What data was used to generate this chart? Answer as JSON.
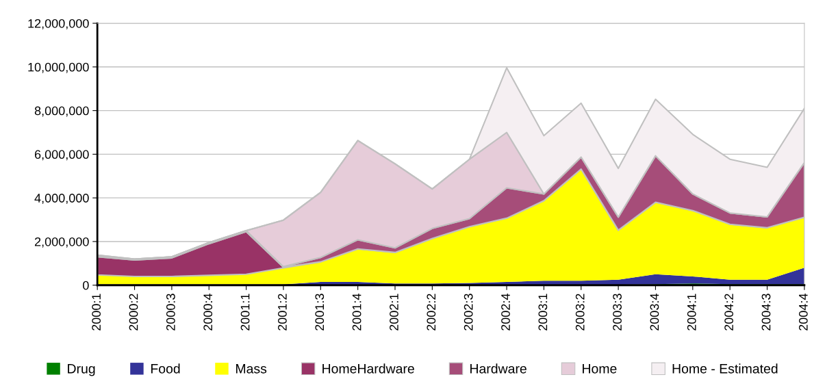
{
  "chart_data": {
    "type": "area",
    "stacked": true,
    "categories": [
      "2000:1",
      "2000:2",
      "2000:3",
      "2000:4",
      "2001:1",
      "2001:2",
      "2001:3",
      "2001:4",
      "2002:1",
      "2002:2",
      "2002:3",
      "2002:4",
      "2003:1",
      "2003:2",
      "2003:3",
      "2003:4",
      "2004:1",
      "2004:2",
      "2004:3",
      "2004:4"
    ],
    "series": [
      {
        "name": "Drug",
        "color": "#008000",
        "values": [
          20000,
          20000,
          20000,
          20000,
          20000,
          20000,
          20000,
          20000,
          20000,
          20000,
          20000,
          20000,
          20000,
          20000,
          20000,
          50000,
          80000,
          50000,
          50000,
          50000
        ]
      },
      {
        "name": "Food",
        "color": "#333399",
        "values": [
          20000,
          20000,
          20000,
          20000,
          20000,
          20000,
          130000,
          130000,
          60000,
          60000,
          80000,
          130000,
          180000,
          180000,
          230000,
          450000,
          320000,
          200000,
          200000,
          750000
        ]
      },
      {
        "name": "Mass",
        "color": "#ffff00",
        "values": [
          430000,
          360000,
          360000,
          410000,
          460000,
          750000,
          920000,
          1510000,
          1420000,
          2060000,
          2580000,
          2920000,
          3670000,
          5120000,
          2270000,
          3300000,
          3020000,
          2540000,
          2380000,
          2310000
        ]
      },
      {
        "name": "HomeHardware",
        "color": "#993366",
        "values": [
          830000,
          750000,
          850000,
          1450000,
          1950000,
          30000,
          0,
          0,
          0,
          0,
          0,
          0,
          0,
          0,
          0,
          0,
          0,
          0,
          0,
          0
        ]
      },
      {
        "name": "Hardware",
        "color": "#a64d79",
        "values": [
          50000,
          50000,
          50000,
          50000,
          50000,
          30000,
          200000,
          420000,
          210000,
          460000,
          370000,
          1390000,
          310000,
          550000,
          600000,
          2130000,
          760000,
          520000,
          500000,
          2510000
        ]
      },
      {
        "name": "Home",
        "color": "#e6ccd9",
        "values": [
          30000,
          0,
          0,
          0,
          0,
          2130000,
          2980000,
          4550000,
          3850000,
          1810000,
          2720000,
          2540000,
          0,
          0,
          0,
          0,
          0,
          0,
          0,
          0
        ]
      },
      {
        "name": "Home - Estimated",
        "color": "#f5eff2",
        "values": [
          0,
          0,
          0,
          0,
          0,
          0,
          0,
          0,
          0,
          0,
          0,
          2960000,
          2670000,
          2470000,
          2230000,
          2590000,
          2730000,
          2460000,
          2270000,
          2480000
        ]
      }
    ],
    "ylim": [
      0,
      12000000
    ],
    "yticks": [
      {
        "value": 0,
        "label": "0"
      },
      {
        "value": 2000000,
        "label": "2,000,000"
      },
      {
        "value": 4000000,
        "label": "4,000,000"
      },
      {
        "value": 6000000,
        "label": "6,000,000"
      },
      {
        "value": 8000000,
        "label": "8,000,000"
      },
      {
        "value": 10000000,
        "label": "10,000,000"
      },
      {
        "value": 12000000,
        "label": "12,000,000"
      }
    ],
    "grid": "y",
    "legend": "bottom"
  }
}
